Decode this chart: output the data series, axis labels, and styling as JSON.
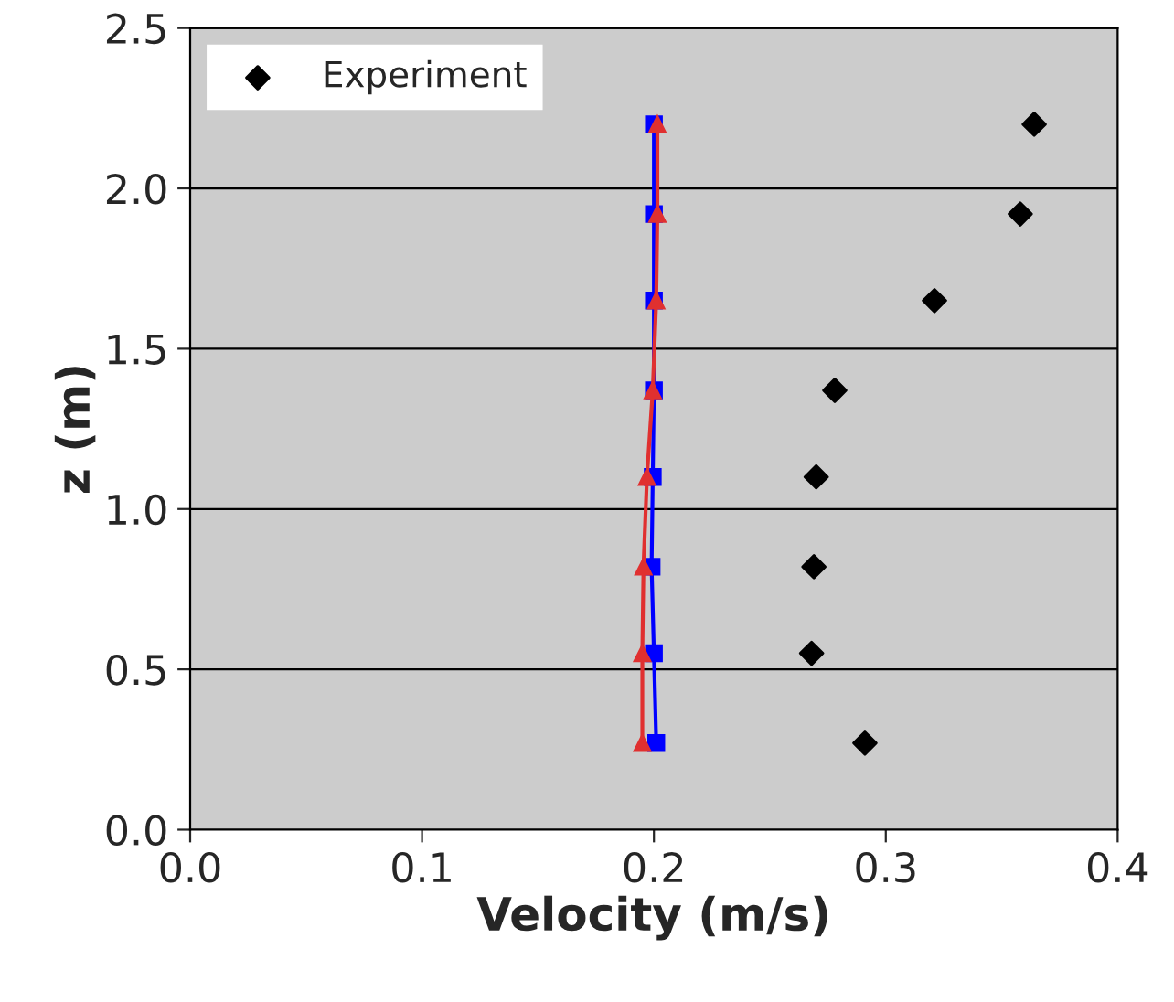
{
  "chart_data": {
    "type": "line",
    "xlabel": "Velocity (m/s)",
    "ylabel": "z (m)",
    "xlim": [
      0.0,
      0.4
    ],
    "xticks": [
      {
        "value": 0.0,
        "label": "0.0"
      },
      0.1,
      0.2,
      0.3,
      0.4
    ],
    "ylim": [
      0.0,
      2.5
    ],
    "yticks": [
      {
        "value": 0.0,
        "label": "0.0"
      },
      0.5,
      {
        "value": 1.0,
        "label": "1.0"
      },
      1.5,
      {
        "value": 2.0,
        "label": "2.0"
      },
      2.5
    ],
    "grid": "y",
    "legend": "top left",
    "series": [
      {
        "name": "Experiment",
        "type": "scatter",
        "marker": "diamond",
        "color": "#000000",
        "x": [
          0.364,
          0.358,
          0.321,
          0.278,
          0.27,
          0.269,
          0.268,
          0.291
        ],
        "values": [
          2.2,
          1.92,
          1.65,
          1.37,
          1.1,
          0.82,
          0.55,
          0.27
        ]
      },
      {
        "marker": "square",
        "color": "#0000ff",
        "x": [
          0.2,
          0.2,
          0.2,
          0.2,
          0.1995,
          0.199,
          0.2,
          0.201
        ],
        "values": [
          2.2,
          1.92,
          1.65,
          1.37,
          1.1,
          0.82,
          0.55,
          0.27
        ]
      },
      {
        "marker": "triangle",
        "color": "#e03030",
        "x": [
          0.2015,
          0.2015,
          0.201,
          0.1995,
          0.197,
          0.1955,
          0.195,
          0.195
        ],
        "values": [
          2.2,
          1.92,
          1.65,
          1.37,
          1.1,
          0.82,
          0.55,
          0.27
        ]
      }
    ]
  }
}
